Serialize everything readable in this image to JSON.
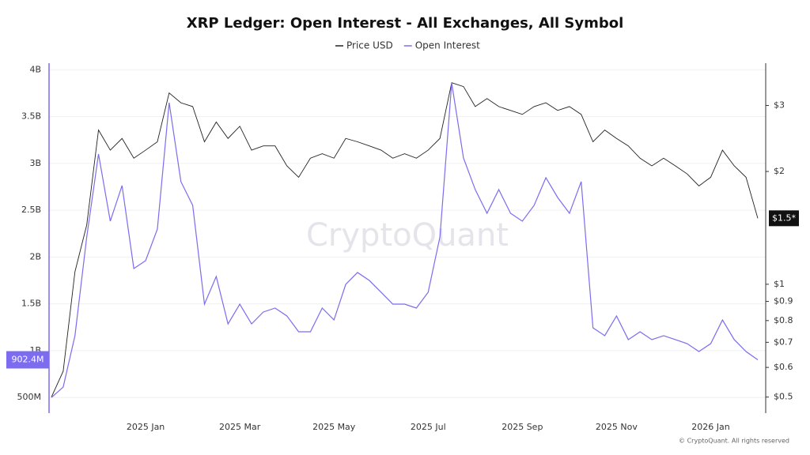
{
  "chart_data": {
    "type": "line",
    "title": "XRP Ledger: Open Interest - All Exchanges, All Symbol",
    "watermark": "CryptoQuant",
    "copyright": "© CryptoQuant. All rights reserved",
    "x": [
      null,
      null,
      null,
      null,
      null,
      null,
      null,
      null,
      "2025 Jan",
      null,
      null,
      null,
      null,
      null,
      null,
      null,
      "2025 Mar",
      null,
      null,
      null,
      null,
      null,
      null,
      null,
      "2025 May",
      null,
      null,
      null,
      null,
      null,
      null,
      null,
      "2025 Jul",
      null,
      null,
      null,
      null,
      null,
      null,
      null,
      "2025 Sep",
      null,
      null,
      null,
      null,
      null,
      null,
      null,
      "2025 Nov",
      null,
      null,
      null,
      null,
      null,
      null,
      null,
      "2026 Jan",
      null,
      null,
      null,
      null
    ],
    "series": [
      {
        "name": "Price USD",
        "color": "#222222",
        "axis": "y2",
        "last_label": "$1.5*",
        "values": [
          0.5,
          0.586,
          1.08,
          1.44,
          2.58,
          2.28,
          2.45,
          2.17,
          2.28,
          2.4,
          3.24,
          3.05,
          2.98,
          2.4,
          2.71,
          2.45,
          2.64,
          2.28,
          2.34,
          2.34,
          2.07,
          1.93,
          2.17,
          2.23,
          2.17,
          2.45,
          2.4,
          2.34,
          2.28,
          2.17,
          2.23,
          2.17,
          2.28,
          2.45,
          3.45,
          3.37,
          2.98,
          3.13,
          2.98,
          2.91,
          2.84,
          2.98,
          3.05,
          2.91,
          2.98,
          2.84,
          2.4,
          2.58,
          2.45,
          2.34,
          2.17,
          2.07,
          2.17,
          2.07,
          1.97,
          1.83,
          1.93,
          2.28,
          2.07,
          1.93,
          1.5
        ]
      },
      {
        "name": "Open Interest",
        "color": "#7b6cf0",
        "axis": "y",
        "last_label": "902.4M",
        "values": [
          500000000,
          611000000,
          1160000000,
          2214000000,
          3100000000,
          2383000000,
          2763000000,
          1877000000,
          1961000000,
          2299000000,
          3648000000,
          2805000000,
          2552000000,
          1497000000,
          1792000000,
          1286000000,
          1497000000,
          1286000000,
          1413000000,
          1455000000,
          1371000000,
          1202000000,
          1202000000,
          1455000000,
          1328000000,
          1708000000,
          1835000000,
          1750000000,
          1624000000,
          1497000000,
          1497000000,
          1455000000,
          1624000000,
          2214000000,
          3859000000,
          3058000000,
          2720000000,
          2467000000,
          2720000000,
          2467000000,
          2383000000,
          2552000000,
          2847000000,
          2636000000,
          2467000000,
          2805000000,
          1244000000,
          1160000000,
          1371000000,
          1118000000,
          1202000000,
          1118000000,
          1160000000,
          1118000000,
          1075000000,
          991000000,
          1075000000,
          1328000000,
          1118000000,
          991000000,
          902400000
        ]
      }
    ],
    "ylim": [
      333000000,
      4070000000
    ],
    "yticks": [
      {
        "value": 500000000,
        "label": "500M"
      },
      {
        "value": 1000000000,
        "label": "1B"
      },
      {
        "value": 1500000000,
        "label": "1.5B"
      },
      {
        "value": 2000000000,
        "label": "2B"
      },
      {
        "value": 2500000000,
        "label": "2.5B"
      },
      {
        "value": 3000000000,
        "label": "3B"
      },
      {
        "value": 3500000000,
        "label": "3.5B"
      },
      {
        "value": 4000000000,
        "label": "4B"
      }
    ],
    "y2lim": [
      0.453,
      3.89
    ],
    "y2scale": "log",
    "y2ticks": [
      {
        "value": 0.5,
        "label": "$0.5"
      },
      {
        "value": 0.6,
        "label": "$0.6"
      },
      {
        "value": 0.7,
        "label": "$0.7"
      },
      {
        "value": 0.8,
        "label": "$0.8"
      },
      {
        "value": 0.9,
        "label": "$0.9"
      },
      {
        "value": 1,
        "label": "$1"
      },
      {
        "value": 2,
        "label": "$2"
      },
      {
        "value": 3,
        "label": "$3"
      }
    ],
    "grid": true
  }
}
